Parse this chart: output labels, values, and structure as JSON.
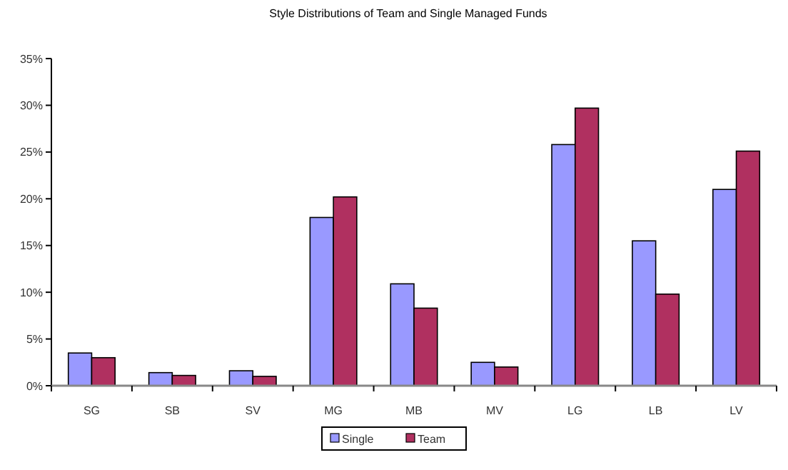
{
  "chart_data": {
    "type": "bar",
    "title": "Style Distributions of Team and Single Managed Funds",
    "categories": [
      "SG",
      "SB",
      "SV",
      "MG",
      "MB",
      "MV",
      "LG",
      "LB",
      "LV"
    ],
    "series": [
      {
        "name": "Single",
        "color": "#9999ff",
        "values": [
          3.5,
          1.4,
          1.6,
          18.0,
          10.9,
          2.5,
          25.8,
          15.5,
          21.0
        ]
      },
      {
        "name": "Team",
        "color": "#b03060",
        "values": [
          3.0,
          1.1,
          1.0,
          20.2,
          8.3,
          2.0,
          29.7,
          9.8,
          25.1
        ]
      }
    ],
    "ylim": [
      0,
      35
    ],
    "yticks": [
      {
        "value": 0,
        "label": "0%"
      },
      {
        "value": 5,
        "label": "5%"
      },
      {
        "value": 10,
        "label": "10%"
      },
      {
        "value": 15,
        "label": "15%"
      },
      {
        "value": 20,
        "label": "20%"
      },
      {
        "value": 25,
        "label": "25%"
      },
      {
        "value": 30,
        "label": "30%"
      },
      {
        "value": 35,
        "label": "35%"
      }
    ],
    "grid": false,
    "legend": "bottom"
  }
}
